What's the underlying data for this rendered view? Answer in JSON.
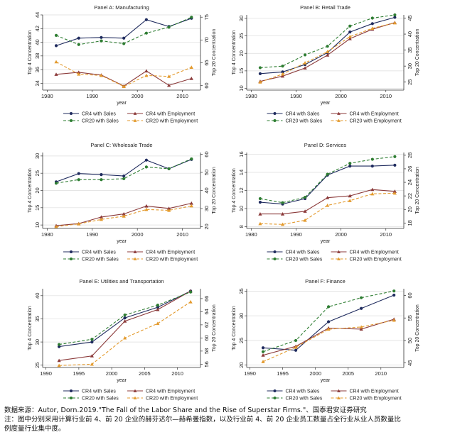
{
  "chart_data": [
    {
      "type": "line",
      "title": "Panel A: Manufacturing",
      "xlabel": "year",
      "ylabel_left": "Top 4 Concentration",
      "ylabel_right": "Top 20 Concentration",
      "x": [
        1982,
        1987,
        1992,
        1997,
        2002,
        2007,
        2012
      ],
      "xlim": [
        1979,
        2014
      ],
      "xticks": [
        1980,
        1990,
        2000,
        2010
      ],
      "ylim_left": [
        33,
        44
      ],
      "yticks_left": [
        34,
        36,
        38,
        40,
        42,
        44
      ],
      "ylim_right": [
        59,
        75.5
      ],
      "yticks_right": [
        60,
        65,
        70,
        75
      ],
      "series": [
        {
          "name": "CR4 with Sales",
          "axis": "left",
          "color": "#1f2b5e",
          "dash": false,
          "marker": "circle",
          "values": [
            39.5,
            40.6,
            40.7,
            40.6,
            43.3,
            42.3,
            43.5
          ]
        },
        {
          "name": "CR4 with Employment",
          "axis": "left",
          "color": "#8b3a3a",
          "dash": false,
          "marker": "triangle",
          "values": [
            35.3,
            35.6,
            35.2,
            33.6,
            35.8,
            33.7,
            34.7
          ]
        },
        {
          "name": "CR20 with Sales",
          "axis": "right",
          "color": "#2e7d32",
          "dash": true,
          "marker": "circle",
          "values": [
            71.0,
            69.0,
            69.8,
            69.2,
            71.5,
            72.8,
            75.0
          ]
        },
        {
          "name": "CR20 with Employment",
          "axis": "right",
          "color": "#e39a2d",
          "dash": true,
          "marker": "triangle",
          "values": [
            65.2,
            62.5,
            62.2,
            59.8,
            62.2,
            62.0,
            64.0
          ]
        }
      ]
    },
    {
      "type": "line",
      "title": "Panel B: Retail Trade",
      "xlabel": "year",
      "ylabel_left": "Top 4 Concentration",
      "ylabel_right": "Top 20 Concentration",
      "x": [
        1982,
        1987,
        1992,
        1997,
        2002,
        2007,
        2012
      ],
      "xlim": [
        1979,
        2014
      ],
      "xticks": [
        1980,
        1990,
        2000,
        2010
      ],
      "ylim_left": [
        9.5,
        31
      ],
      "yticks_left": [
        10,
        15,
        20,
        25,
        30
      ],
      "ylim_right": [
        22.5,
        46
      ],
      "yticks_right": [
        25,
        30,
        35,
        40,
        45
      ],
      "series": [
        {
          "name": "CR4 with Sales",
          "axis": "left",
          "color": "#1f2b5e",
          "dash": false,
          "marker": "circle",
          "values": [
            14.2,
            14.7,
            16.8,
            20.2,
            26.1,
            28.5,
            30.3
          ]
        },
        {
          "name": "CR4 with Employment",
          "axis": "left",
          "color": "#8b3a3a",
          "dash": false,
          "marker": "triangle",
          "values": [
            12.0,
            13.5,
            15.8,
            19.5,
            24.2,
            26.9,
            28.8
          ]
        },
        {
          "name": "CR20 with Sales",
          "axis": "right",
          "color": "#2e7d32",
          "dash": true,
          "marker": "circle",
          "values": [
            29.5,
            30.0,
            33.5,
            36.2,
            42.5,
            45.0,
            46.0
          ]
        },
        {
          "name": "CR20 with Employment",
          "axis": "right",
          "color": "#e39a2d",
          "dash": true,
          "marker": "triangle",
          "values": [
            25.0,
            27.5,
            31.0,
            34.5,
            39.2,
            41.8,
            43.5
          ]
        }
      ]
    },
    {
      "type": "line",
      "title": "Panel C: Wholesale Trade",
      "xlabel": "year",
      "ylabel_left": "Top 4 Concentration",
      "ylabel_right": "Top 20 Concentration",
      "x": [
        1982,
        1987,
        1992,
        1997,
        2002,
        2007,
        2012
      ],
      "xlim": [
        1979,
        2014
      ],
      "xticks": [
        1980,
        1990,
        2000,
        2010
      ],
      "ylim_left": [
        9,
        31
      ],
      "yticks_left": [
        10,
        15,
        20,
        25,
        30
      ],
      "ylim_right": [
        19,
        61
      ],
      "yticks_right": [
        20,
        30,
        40,
        50,
        60
      ],
      "series": [
        {
          "name": "CR4 with Sales",
          "axis": "left",
          "color": "#1f2b5e",
          "dash": false,
          "marker": "circle",
          "values": [
            22.5,
            24.9,
            24.6,
            24.2,
            28.8,
            26.3,
            29.0
          ]
        },
        {
          "name": "CR4 with Employment",
          "axis": "left",
          "color": "#8b3a3a",
          "dash": false,
          "marker": "triangle",
          "values": [
            9.8,
            10.4,
            12.3,
            13.2,
            15.5,
            14.8,
            16.3
          ]
        },
        {
          "name": "CR20 with Sales",
          "axis": "right",
          "color": "#2e7d32",
          "dash": true,
          "marker": "circle",
          "values": [
            44.0,
            46.0,
            46.0,
            46.5,
            53.0,
            52.0,
            57.5
          ]
        },
        {
          "name": "CR20 with Employment",
          "axis": "right",
          "color": "#e39a2d",
          "dash": true,
          "marker": "triangle",
          "values": [
            20.0,
            21.5,
            24.0,
            25.8,
            29.5,
            29.0,
            31.5
          ]
        }
      ]
    },
    {
      "type": "line",
      "title": "Panel D: Services",
      "xlabel": "year",
      "ylabel_left": "Top 4 Concentration",
      "ylabel_right": "Top 20 Concentration",
      "x": [
        1982,
        1987,
        1992,
        1997,
        2002,
        2007,
        2012
      ],
      "xlim": [
        1979,
        2014
      ],
      "xticks": [
        1980,
        1990,
        2000,
        2010
      ],
      "ylim_left": [
        7.8,
        16.2
      ],
      "yticks_left": [
        8,
        10,
        12,
        14,
        16
      ],
      "ylim_right": [
        17.2,
        28.4
      ],
      "yticks_right": [
        18,
        20,
        22,
        24,
        26,
        28
      ],
      "series": [
        {
          "name": "CR4 with Sales",
          "axis": "left",
          "color": "#1f2b5e",
          "dash": false,
          "marker": "circle",
          "values": [
            10.7,
            10.5,
            11.1,
            13.7,
            14.7,
            14.7,
            14.8
          ]
        },
        {
          "name": "CR4 with Employment",
          "axis": "left",
          "color": "#8b3a3a",
          "dash": false,
          "marker": "triangle",
          "values": [
            9.4,
            9.4,
            9.7,
            11.2,
            11.4,
            12.1,
            11.9
          ]
        },
        {
          "name": "CR20 with Sales",
          "axis": "right",
          "color": "#2e7d32",
          "dash": true,
          "marker": "circle",
          "values": [
            21.6,
            21.0,
            21.8,
            25.2,
            26.8,
            27.4,
            27.8
          ]
        },
        {
          "name": "CR20 with Employment",
          "axis": "right",
          "color": "#e39a2d",
          "dash": true,
          "marker": "triangle",
          "values": [
            17.9,
            17.8,
            18.4,
            20.6,
            21.3,
            22.3,
            22.4
          ]
        }
      ]
    },
    {
      "type": "line",
      "title": "Panel E: Utilities and Transportation",
      "xlabel": "year",
      "ylabel_left": "Top 4 Concentration",
      "ylabel_right": "Top 20 Concentration",
      "x": [
        1992,
        1997,
        2002,
        2007,
        2012
      ],
      "xlim": [
        1989.5,
        2013.5
      ],
      "xticks": [
        1990,
        1995,
        2000,
        2005,
        2010
      ],
      "ylim_left": [
        24.5,
        41.5
      ],
      "yticks_left": [
        25,
        30,
        35,
        40
      ],
      "ylim_right": [
        55.5,
        67.5
      ],
      "yticks_right": [
        56,
        58,
        60,
        62,
        64,
        66
      ],
      "series": [
        {
          "name": "CR4 with Sales",
          "axis": "left",
          "color": "#1f2b5e",
          "dash": false,
          "marker": "circle",
          "values": [
            29.0,
            30.0,
            35.2,
            37.5,
            41.0
          ]
        },
        {
          "name": "CR4 with Employment",
          "axis": "left",
          "color": "#8b3a3a",
          "dash": false,
          "marker": "triangle",
          "values": [
            26.0,
            27.0,
            34.5,
            37.0,
            41.0
          ]
        },
        {
          "name": "CR20 with Sales",
          "axis": "right",
          "color": "#2e7d32",
          "dash": true,
          "marker": "circle",
          "values": [
            59.0,
            59.8,
            63.5,
            65.0,
            67.0
          ]
        },
        {
          "name": "CR20 with Employment",
          "axis": "right",
          "color": "#e39a2d",
          "dash": true,
          "marker": "triangle",
          "values": [
            55.8,
            56.0,
            60.0,
            62.2,
            65.5
          ]
        }
      ]
    },
    {
      "type": "line",
      "title": "Panel F: Finance",
      "xlabel": "year",
      "ylabel_left": "Top 4 Concentration",
      "ylabel_right": "Top 20 Concentration",
      "x": [
        1992,
        1997,
        2002,
        2007,
        2012
      ],
      "xlim": [
        1989.5,
        2013.5
      ],
      "xticks": [
        1990,
        1995,
        2000,
        2005,
        2010
      ],
      "ylim_left": [
        19.5,
        35.5
      ],
      "yticks_left": [
        20,
        25,
        30,
        35
      ],
      "ylim_right": [
        44,
        61.5
      ],
      "yticks_right": [
        45,
        50,
        55,
        60
      ],
      "series": [
        {
          "name": "CR4 with Sales",
          "axis": "left",
          "color": "#1f2b5e",
          "dash": false,
          "marker": "circle",
          "values": [
            23.5,
            23.0,
            28.8,
            31.5,
            34.2
          ]
        },
        {
          "name": "CR4 with Employment",
          "axis": "left",
          "color": "#8b3a3a",
          "dash": false,
          "marker": "triangle",
          "values": [
            22.0,
            23.8,
            27.5,
            27.3,
            29.3
          ]
        },
        {
          "name": "CR20 with Sales",
          "axis": "right",
          "color": "#2e7d32",
          "dash": true,
          "marker": "circle",
          "values": [
            47.5,
            50.0,
            57.5,
            59.5,
            61.0
          ]
        },
        {
          "name": "CR20 with Employment",
          "axis": "right",
          "color": "#e39a2d",
          "dash": true,
          "marker": "triangle",
          "values": [
            45.3,
            48.5,
            52.5,
            53.0,
            54.5
          ]
        }
      ]
    }
  ],
  "footer": {
    "source": "数据来源：Autor, Dorn.2019.\"The Fall of the Labor Share and the Rise of Superstar Firms.\"、国泰君安证券研究",
    "note_line1": "注：图中分别采用计算行业前 4、前 20 企业的赫芬达尔—赫希曼指数，以及行业前 4、前 20 企业员工数量占全行业从业人员数量比",
    "note_line2": "例度量行业集中度。"
  }
}
